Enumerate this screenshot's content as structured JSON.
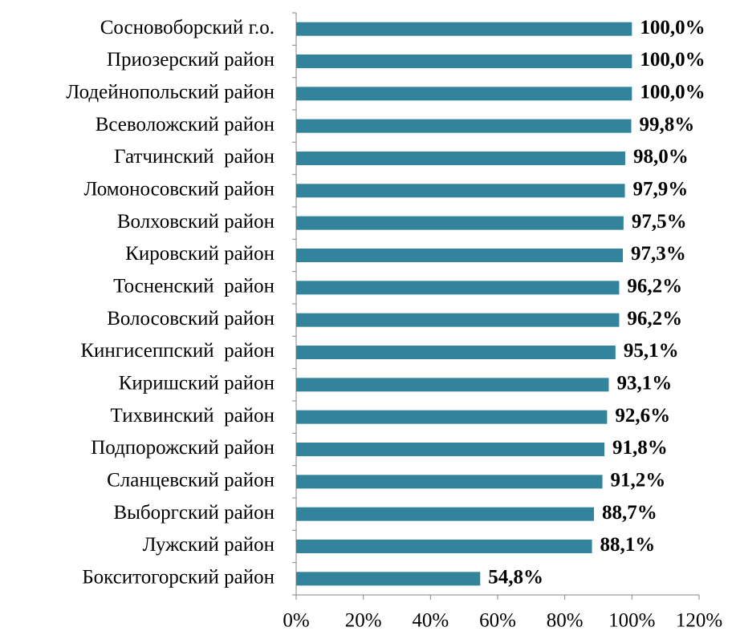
{
  "chart_data": {
    "type": "bar",
    "orientation": "horizontal",
    "categories": [
      "Сосновоборский г.о.",
      "Приозерский район",
      "Лодейнопольский район",
      "Всеволожский район",
      "Гатчинский  район",
      "Ломоносовский район",
      "Волховский район",
      "Кировский район",
      "Тосненский  район",
      "Волосовский район",
      "Кингисеппский  район",
      "Киришский район",
      "Тихвинский  район",
      "Подпорожский район",
      "Сланцевский район",
      "Выборгский район",
      "Лужский район",
      "Бокситогорский район"
    ],
    "values": [
      100.0,
      100.0,
      100.0,
      99.8,
      98.0,
      97.9,
      97.5,
      97.3,
      96.2,
      96.2,
      95.1,
      93.1,
      92.6,
      91.8,
      91.2,
      88.7,
      88.1,
      54.8
    ],
    "value_labels": [
      "100,0%",
      "100,0%",
      "100,0%",
      "99,8%",
      "98,0%",
      "97,9%",
      "97,5%",
      "97,3%",
      "96,2%",
      "96,2%",
      "95,1%",
      "93,1%",
      "92,6%",
      "91,8%",
      "91,2%",
      "88,7%",
      "88,1%",
      "54,8%"
    ],
    "color": "#31849b",
    "xlim": [
      0,
      120
    ],
    "xticks": [
      {
        "value": 0,
        "label": "0%"
      },
      {
        "value": 20,
        "label": "20%"
      },
      {
        "value": 40,
        "label": "40%"
      },
      {
        "value": 60,
        "label": "60%"
      },
      {
        "value": 80,
        "label": "80%"
      },
      {
        "value": 100,
        "label": "100%"
      },
      {
        "value": 120,
        "label": "120%"
      }
    ]
  }
}
